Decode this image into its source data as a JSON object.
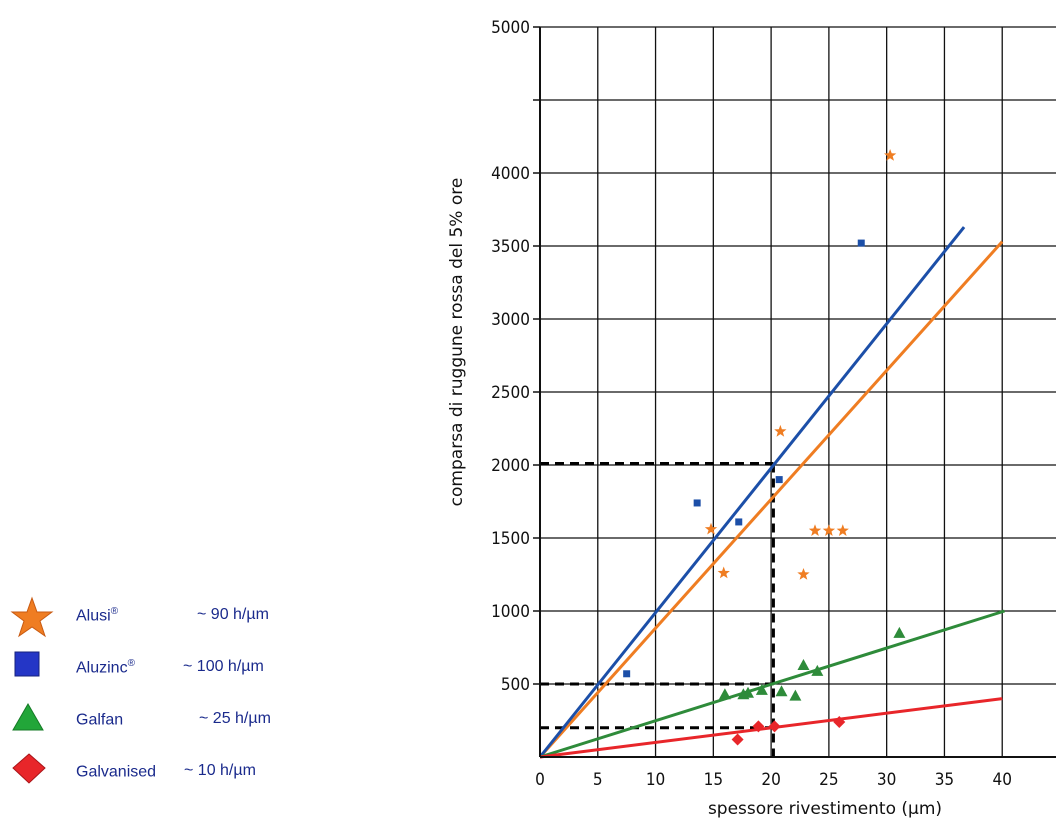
{
  "chart_data": {
    "type": "scatter",
    "title": "",
    "xlabel": "spessore rivestimento (μm)",
    "ylabel": "comparsa di ruggune rossa del 5%  ore",
    "xlim": [
      0,
      45
    ],
    "ylim": [
      0,
      5000
    ],
    "x_ticks": [
      "0",
      "5",
      "10",
      "15",
      "20",
      "25",
      "30",
      "35",
      "40"
    ],
    "y_ticks": [
      "500",
      "1000",
      "1500",
      "2000",
      "2500",
      "3000",
      "3500",
      "4000",
      "5000"
    ],
    "y_tick_values": [
      500,
      1000,
      1500,
      2000,
      2500,
      3000,
      3500,
      4000,
      5000
    ],
    "grid": true,
    "legend_position": "left",
    "series": [
      {
        "name": "Alusi",
        "registered": "®",
        "rate": "~ 90 h/µm",
        "color": "#ef7d22",
        "marker": "star",
        "points": [
          [
            14.8,
            1560
          ],
          [
            15.9,
            1260
          ],
          [
            20.8,
            2230
          ],
          [
            22.8,
            1250
          ],
          [
            23.8,
            1550
          ],
          [
            25,
            1550
          ],
          [
            26.2,
            1550
          ],
          [
            30.3,
            4120
          ]
        ],
        "fit_line": [
          [
            0,
            0
          ],
          [
            40,
            3530
          ]
        ]
      },
      {
        "name": "Aluzinc",
        "registered": "®",
        "rate": "~ 100 h/µm",
        "color": "#1c4fa8",
        "marker": "square",
        "points": [
          [
            7.5,
            570
          ],
          [
            13.6,
            1740
          ],
          [
            17.2,
            1610
          ],
          [
            20.7,
            1900
          ],
          [
            27.8,
            3520
          ]
        ],
        "fit_line": [
          [
            0,
            0
          ],
          [
            36.7,
            3630
          ]
        ]
      },
      {
        "name": "Galfan",
        "registered": "",
        "rate": "~ 25 h/µm",
        "color": "#2e8b3a",
        "marker": "triangle",
        "points": [
          [
            16,
            430
          ],
          [
            17.6,
            430
          ],
          [
            18,
            440
          ],
          [
            19.2,
            460
          ],
          [
            20.9,
            450
          ],
          [
            22.1,
            420
          ],
          [
            22.8,
            630
          ],
          [
            24,
            590
          ],
          [
            31.1,
            850
          ]
        ],
        "fit_line": [
          [
            0,
            0
          ],
          [
            40.2,
            1000
          ]
        ]
      },
      {
        "name": "Galvanised",
        "registered": "",
        "rate": "~ 10 h/µm",
        "color": "#e8262a",
        "marker": "diamond",
        "points": [
          [
            17.1,
            120
          ],
          [
            18.9,
            210
          ],
          [
            20.3,
            210
          ],
          [
            25.9,
            240
          ]
        ],
        "fit_line": [
          [
            0,
            0
          ],
          [
            40,
            400
          ]
        ]
      }
    ],
    "reference_lines": [
      [
        [
          0,
          2010
        ],
        [
          20.2,
          2010
        ]
      ],
      [
        [
          20.2,
          2010
        ],
        [
          20.2,
          0
        ]
      ],
      [
        [
          0,
          500
        ],
        [
          20.2,
          500
        ]
      ],
      [
        [
          0,
          200
        ],
        [
          20.2,
          200
        ]
      ]
    ]
  }
}
